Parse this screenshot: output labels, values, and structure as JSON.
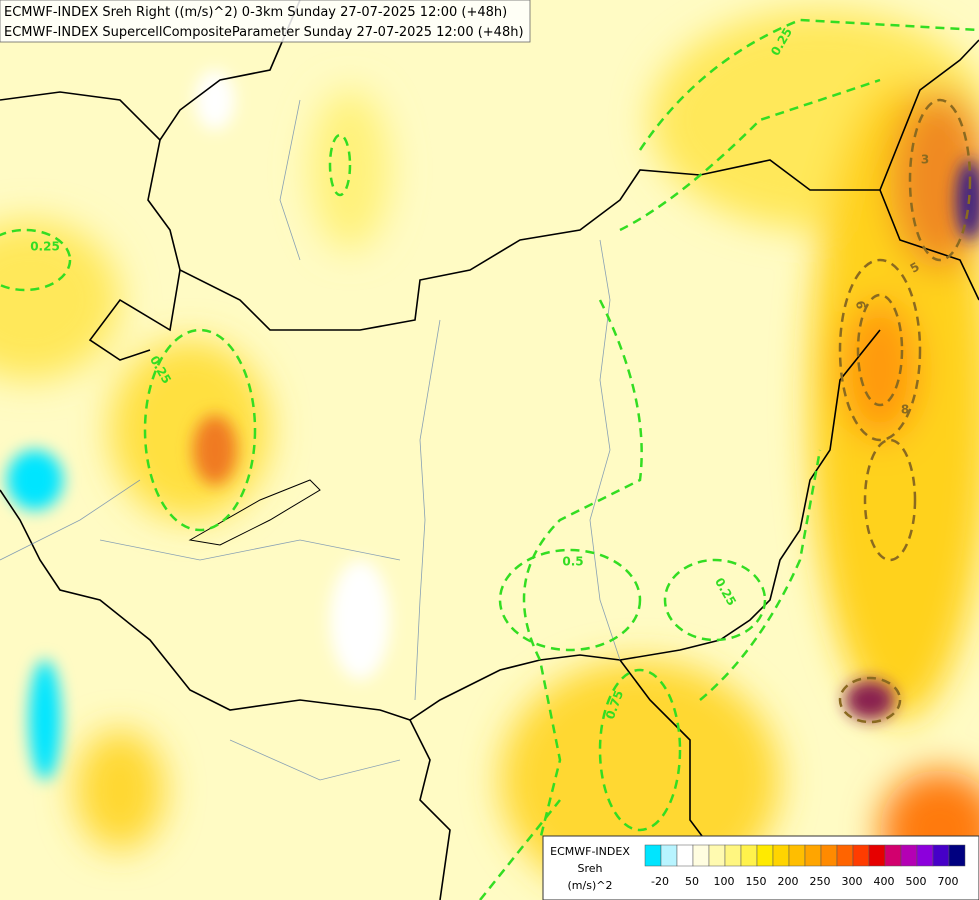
{
  "header": {
    "lines": [
      "ECMWF-INDEX Sreh Right ((m/s)^2) 0-3km Sunday 27-07-2025 12:00 (+48h)",
      "ECMWF-INDEX SupercellCompositeParameter Sunday 27-07-2025 12:00 (+48h)"
    ]
  },
  "map": {
    "contour_labels": [
      "0.25",
      "0.25",
      "0.25",
      "0.25",
      "0.5",
      "0.75",
      "3",
      "5",
      "6",
      "8"
    ]
  },
  "legend": {
    "title": "ECMWF-INDEX",
    "field": "Sreh",
    "unit": "(m/s)^2",
    "colors": [
      "#00e5ff",
      "#b8f4ff",
      "#ffffff",
      "#fffde0",
      "#fffab0",
      "#fff680",
      "#fff24c",
      "#ffea00",
      "#ffd400",
      "#ffbe00",
      "#ffa500",
      "#ff8a00",
      "#ff6400",
      "#ff3c00",
      "#e60000",
      "#d2006e",
      "#b400b4",
      "#8c00dc",
      "#4600c8",
      "#000080"
    ],
    "ticks": [
      -20,
      50,
      100,
      150,
      200,
      250,
      300,
      400,
      500,
      700
    ]
  }
}
